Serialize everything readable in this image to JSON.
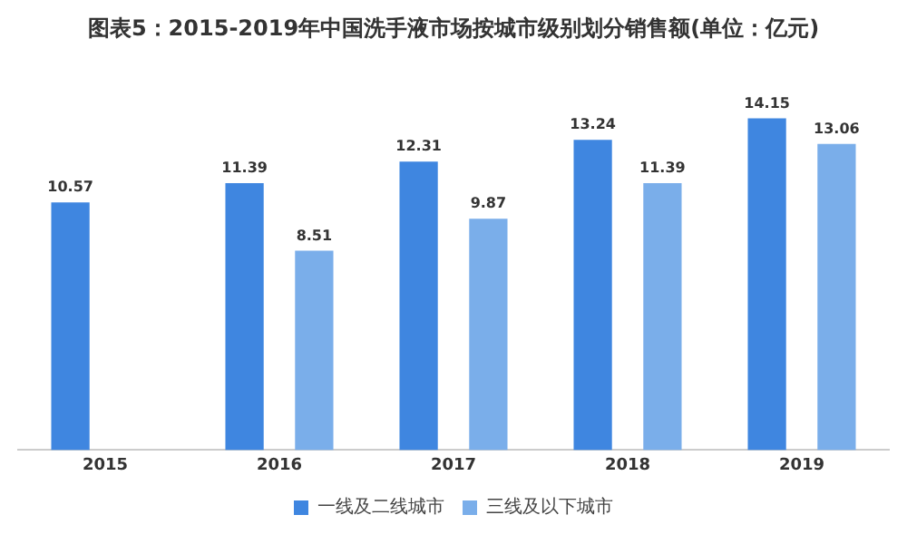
{
  "chart_data": {
    "type": "bar",
    "title": "图表5：2015-2019年中国洗手液市场按城市级别划分销售额(单位：亿元)",
    "categories": [
      "2015",
      "2016",
      "2017",
      "2018",
      "2019"
    ],
    "series": [
      {
        "name": "一线及二线城市",
        "color": "#3f86e0",
        "values": [
          10.57,
          11.39,
          12.31,
          13.24,
          14.15
        ]
      },
      {
        "name": "三线及以下城市",
        "color": "#7aaeea",
        "values": [
          null,
          8.51,
          9.87,
          11.39,
          13.06
        ]
      }
    ],
    "data_labels": true,
    "legend": "bottom",
    "grid": false
  }
}
